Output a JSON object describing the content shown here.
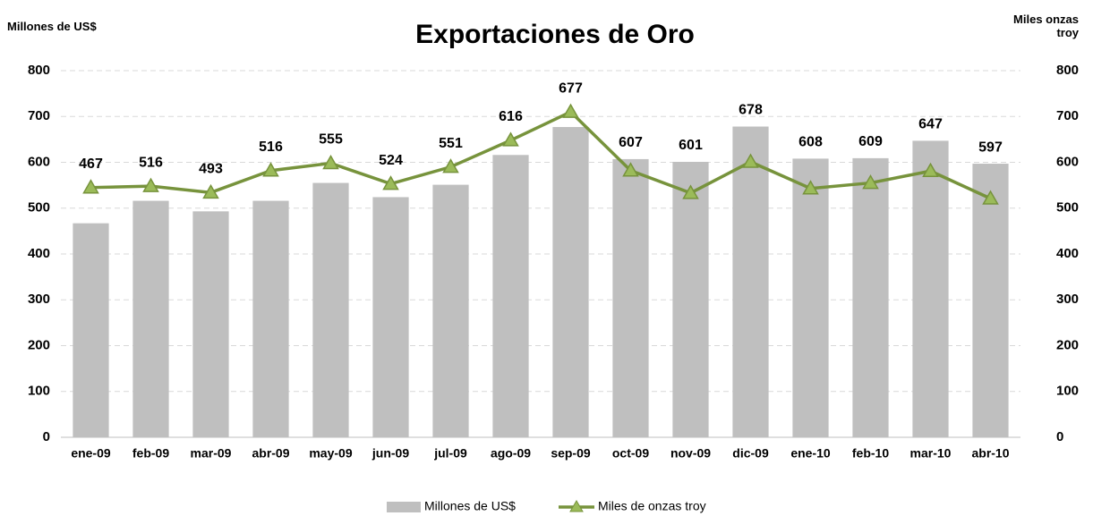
{
  "chart_data": {
    "type": "bar_line",
    "title": "Exportaciones de Oro",
    "y_label": "Millones de US$",
    "y2_label": "Miles onzas troy",
    "categories": [
      "ene-09",
      "feb-09",
      "mar-09",
      "abr-09",
      "may-09",
      "jun-09",
      "jul-09",
      "ago-09",
      "sep-09",
      "oct-09",
      "nov-09",
      "dic-09",
      "ene-10",
      "feb-10",
      "mar-10",
      "abr-10"
    ],
    "series": [
      {
        "name": "Millones de US$",
        "type": "bar",
        "color": "#bfbfbf",
        "values": [
          467,
          516,
          493,
          516,
          555,
          524,
          551,
          616,
          677,
          607,
          601,
          678,
          608,
          609,
          647,
          597
        ]
      },
      {
        "name": "Miles de onzas troy",
        "type": "line",
        "axis": "y2",
        "color": "#77933c",
        "marker_color": "#9bbb59",
        "values": [
          545,
          548,
          534,
          582,
          598,
          553,
          590,
          648,
          710,
          582,
          533,
          601,
          543,
          555,
          581,
          521
        ]
      }
    ],
    "ylim": [
      0,
      800
    ],
    "yticks": [
      0,
      100,
      200,
      300,
      400,
      500,
      600,
      700,
      800
    ],
    "y2lim": [
      0,
      800
    ],
    "y2ticks": [
      0,
      100,
      200,
      300,
      400,
      500,
      600,
      700,
      800
    ],
    "grid": true,
    "legend": "bottom"
  }
}
